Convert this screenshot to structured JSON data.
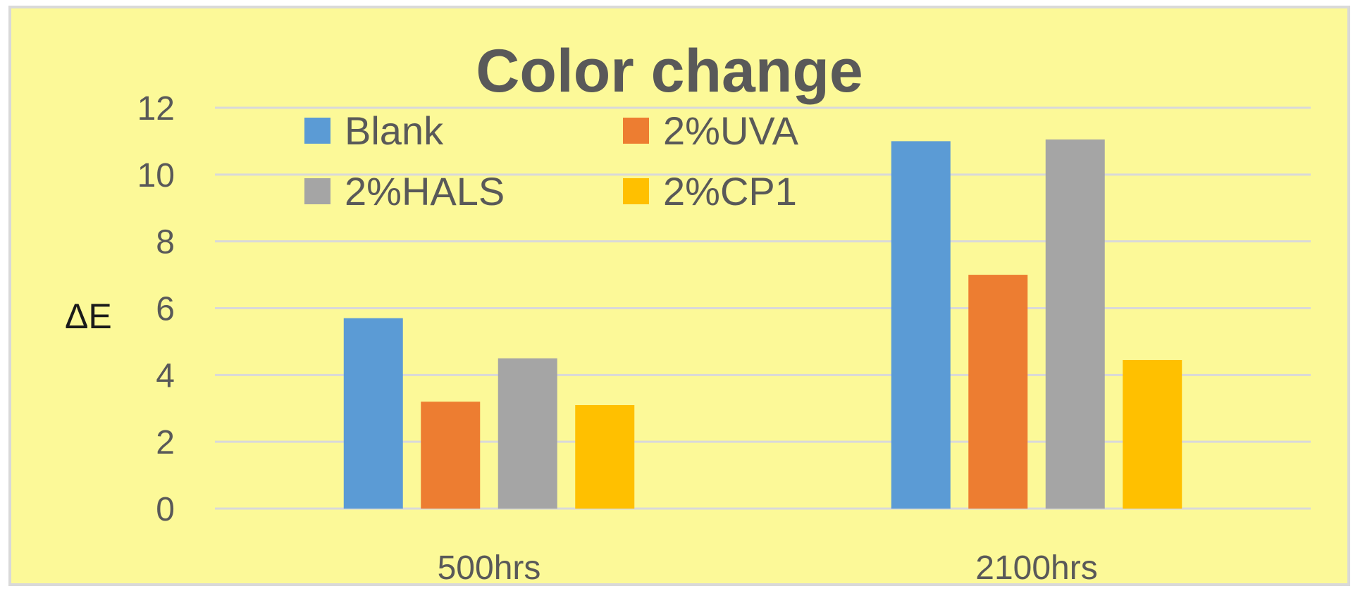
{
  "chart_data": {
    "type": "bar",
    "title": "Color change",
    "ylabel": "ΔE",
    "xlabel": "",
    "categories": [
      "500hrs",
      "2100hrs"
    ],
    "series": [
      {
        "name": "Blank",
        "values": [
          5.7,
          11.0
        ]
      },
      {
        "name": "2%UVA",
        "values": [
          3.2,
          7.0
        ]
      },
      {
        "name": "2%HALS",
        "values": [
          4.5,
          11.05
        ]
      },
      {
        "name": "2%CP1",
        "values": [
          3.1,
          4.45
        ]
      }
    ],
    "ylim": [
      0,
      12
    ],
    "yticks": [
      "0",
      "2",
      "4",
      "6",
      "8",
      "10",
      "12"
    ],
    "grid": true,
    "legend_position": "top-left",
    "colors": {
      "background": "#fcf998",
      "frame": "#d9d9d9",
      "grid": "#d9d9d9",
      "text": "#595959",
      "series": [
        "#5b9bd5",
        "#ed7d31",
        "#a5a5a5",
        "#ffc000"
      ]
    }
  }
}
